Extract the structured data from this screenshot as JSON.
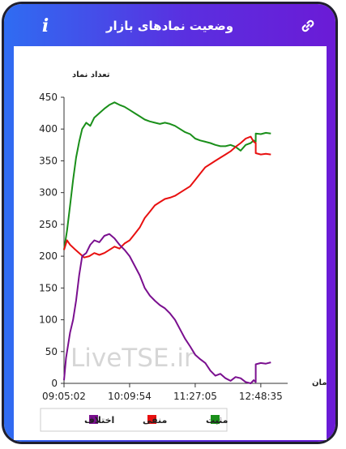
{
  "header": {
    "title": "وضعیت نمادهای بازار",
    "info_icon": "info-icon",
    "link_icon": "link-icon"
  },
  "watermark": "LiveTSE.ir",
  "colors": {
    "positive": "#1a8f1a",
    "negative": "#e81010",
    "difference": "#7a0f8f"
  },
  "chart_data": {
    "type": "line",
    "ylabel": "تعداد نماد",
    "xlabel": "زمان",
    "ylim": [
      0,
      450
    ],
    "yticks": [
      0,
      50,
      100,
      150,
      200,
      250,
      300,
      350,
      400,
      450
    ],
    "xlim": [
      0,
      220
    ],
    "xticks": [
      0,
      65,
      130,
      195
    ],
    "xtick_labels": [
      "09:05:02",
      "10:09:54",
      "11:27:05",
      "12:48:35"
    ],
    "grid": false,
    "legend_position": "bottom",
    "series": [
      {
        "name": "مثبت",
        "color": "#1a8f1a",
        "x": [
          0,
          3,
          6,
          9,
          12,
          15,
          18,
          22,
          26,
          30,
          35,
          40,
          45,
          50,
          55,
          60,
          65,
          70,
          75,
          80,
          85,
          90,
          95,
          100,
          105,
          110,
          115,
          120,
          125,
          130,
          135,
          140,
          145,
          150,
          155,
          160,
          165,
          170,
          175,
          180,
          185,
          188,
          190,
          190,
          195,
          200,
          205
        ],
        "y": [
          210,
          240,
          280,
          320,
          355,
          380,
          400,
          410,
          405,
          418,
          425,
          432,
          438,
          442,
          438,
          435,
          430,
          425,
          420,
          415,
          412,
          410,
          408,
          410,
          408,
          405,
          400,
          395,
          392,
          385,
          382,
          380,
          378,
          375,
          373,
          373,
          375,
          372,
          366,
          375,
          378,
          382,
          380,
          393,
          392,
          394,
          393
        ]
      },
      {
        "name": "منفی",
        "color": "#e81010",
        "x": [
          0,
          3,
          6,
          10,
          15,
          20,
          25,
          30,
          35,
          40,
          45,
          50,
          55,
          60,
          65,
          70,
          75,
          80,
          85,
          90,
          95,
          100,
          105,
          110,
          115,
          120,
          125,
          130,
          135,
          140,
          145,
          150,
          155,
          160,
          165,
          170,
          175,
          180,
          185,
          188,
          190,
          190,
          195,
          200,
          205
        ],
        "y": [
          210,
          225,
          218,
          212,
          205,
          198,
          200,
          205,
          202,
          205,
          210,
          215,
          212,
          220,
          225,
          235,
          245,
          260,
          270,
          280,
          285,
          290,
          292,
          295,
          300,
          305,
          310,
          320,
          330,
          340,
          345,
          350,
          355,
          360,
          365,
          372,
          378,
          385,
          388,
          380,
          378,
          362,
          360,
          361,
          360
        ]
      },
      {
        "name": "اختلاف",
        "color": "#7a0f8f",
        "x": [
          0,
          2,
          4,
          6,
          9,
          12,
          15,
          18,
          22,
          26,
          30,
          35,
          40,
          45,
          50,
          55,
          60,
          65,
          70,
          75,
          80,
          85,
          90,
          95,
          100,
          105,
          110,
          115,
          120,
          125,
          130,
          135,
          140,
          145,
          150,
          155,
          160,
          165,
          170,
          175,
          180,
          185,
          188,
          190,
          190,
          195,
          200,
          205
        ],
        "y": [
          5,
          40,
          60,
          80,
          100,
          130,
          170,
          200,
          205,
          218,
          225,
          222,
          232,
          235,
          228,
          218,
          210,
          200,
          185,
          170,
          150,
          138,
          130,
          123,
          118,
          110,
          100,
          85,
          70,
          58,
          45,
          38,
          32,
          20,
          12,
          15,
          8,
          4,
          10,
          8,
          2,
          0,
          5,
          2,
          30,
          32,
          31,
          33
        ]
      }
    ]
  }
}
